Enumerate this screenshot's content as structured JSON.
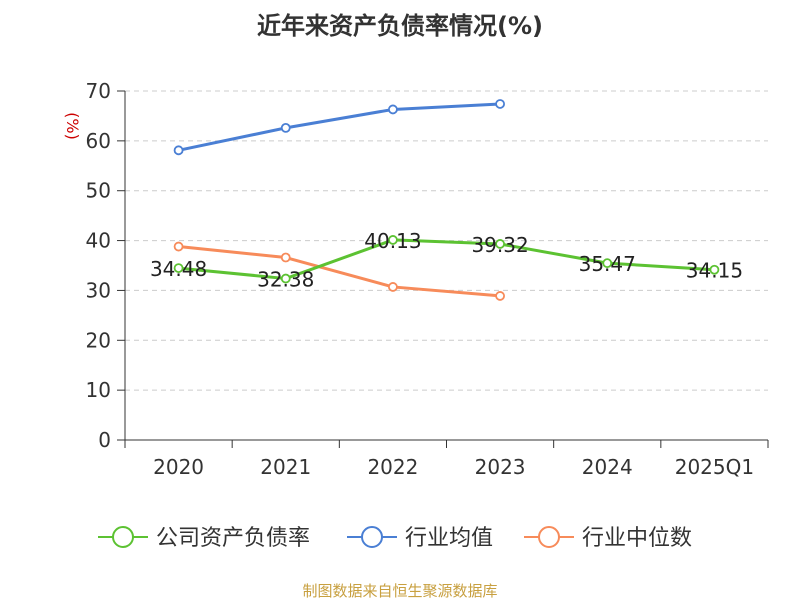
{
  "title": "近年来资产负债率情况(%)",
  "source_note": "制图数据来自恒生聚源数据库",
  "chart_data": {
    "type": "line",
    "title": "近年来资产负债率情况(%)",
    "ylabel": "(%)",
    "xlabel": "",
    "ylim": [
      0,
      70
    ],
    "yticks": [
      0,
      10,
      20,
      30,
      40,
      50,
      60,
      70
    ],
    "grid": true,
    "legend_position": "bottom",
    "categories": [
      "2020",
      "2021",
      "2022",
      "2023",
      "2024",
      "2025Q1"
    ],
    "series": [
      {
        "name": "公司资产负债率",
        "color": "#5cc232",
        "values": [
          34.48,
          32.38,
          40.13,
          39.32,
          35.47,
          34.15
        ],
        "labels": [
          "34.48",
          "32.38",
          "40.13",
          "39.32",
          "35.47",
          "34.15"
        ]
      },
      {
        "name": "行业均值",
        "color": "#4a7fd4",
        "values": [
          58.1,
          62.6,
          66.3,
          67.4,
          null,
          null
        ]
      },
      {
        "name": "行业中位数",
        "color": "#f78b5a",
        "values": [
          38.8,
          36.6,
          30.7,
          28.9,
          null,
          null
        ]
      }
    ]
  }
}
